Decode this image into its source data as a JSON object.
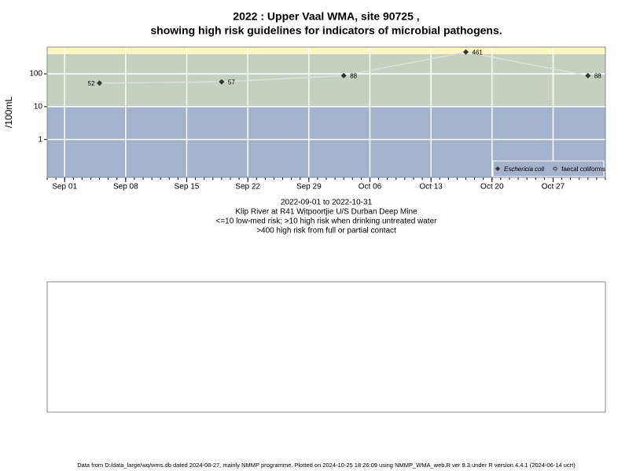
{
  "chart_data": {
    "type": "line",
    "title": "2022 : Upper Vaal WMA, site 90725 ,",
    "subtitle": "showing high risk guidelines for indicators of microbial pathogens.",
    "ylabel": "/100mL",
    "x": [
      "2022-09-05",
      "2022-09-19",
      "2022-10-03",
      "2022-10-17",
      "2022-10-31"
    ],
    "series": [
      {
        "name": "Eschericia coli",
        "color": "#333333",
        "marker": "diamond",
        "values": [
          52,
          57,
          88,
          461,
          88
        ]
      },
      {
        "name": "faecal coliforms",
        "color": "#333333",
        "marker": "open-circle",
        "values": [
          null,
          null,
          null,
          null,
          null
        ]
      }
    ],
    "line_color": "#dddddd",
    "ylog": true,
    "ylim": [
      0.07,
      650
    ],
    "yticks": [
      1,
      10,
      100
    ],
    "xlim": [
      "2022-08-30",
      "2022-11-02"
    ],
    "xticks": [
      {
        "value": "2022-09-01",
        "label": "Sep 01"
      },
      {
        "value": "2022-09-08",
        "label": "Sep 08"
      },
      {
        "value": "2022-09-15",
        "label": "Sep 15"
      },
      {
        "value": "2022-09-22",
        "label": "Sep 22"
      },
      {
        "value": "2022-09-29",
        "label": "Sep 29"
      },
      {
        "value": "2022-10-06",
        "label": "Oct 06"
      },
      {
        "value": "2022-10-13",
        "label": "Oct 13"
      },
      {
        "value": "2022-10-20",
        "label": "Oct 20"
      },
      {
        "value": "2022-10-27",
        "label": "Oct 27"
      }
    ],
    "guidelines": [
      10,
      400
    ],
    "band_colors": [
      "#a3b3cc",
      "#c6d0c2",
      "#fbf7c0"
    ],
    "grid": true,
    "legend": "bottom-right",
    "notes": [
      "2022-09-01 to 2022-10-31",
      "Klip River at R41 Witpoortjie U/S Durban Deep Mine",
      "<=10 low-med risk; >10 high risk when drinking untreated water",
      ">400 high risk from full or partial contact"
    ],
    "footer": "Data from D:/data_large/wq/wms.db dated 2024-08-27, mainly NMMP programme. Plotted on 2024-10-25 18:26:09 using NMMP_WMA_web.R ver 9.3 under R version 4.4.1 (2024-06-14 ucrt)"
  }
}
